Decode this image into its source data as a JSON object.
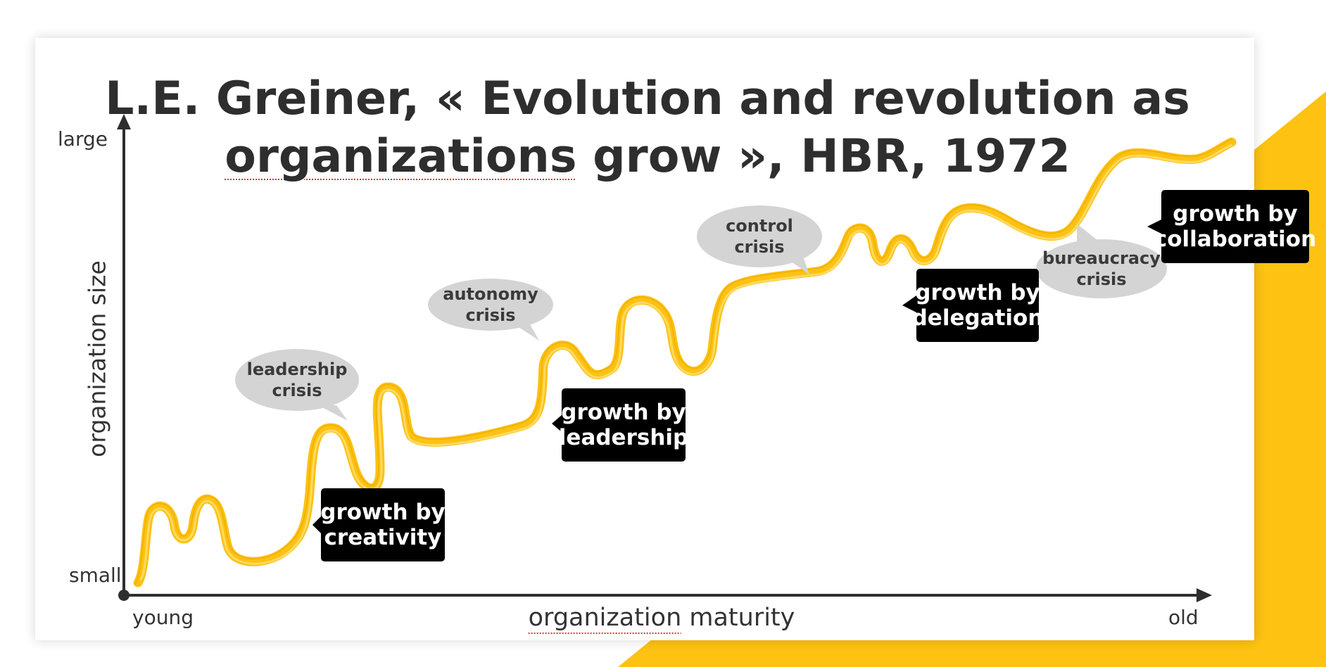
{
  "title": {
    "prefix": "L.E. Greiner, « Evolution and revolution as",
    "underlined_word": "organizations",
    "suffix": " grow », HBR, 1972"
  },
  "y_axis": {
    "title": "organization size",
    "top_label": "large",
    "bottom_label": "small"
  },
  "x_axis": {
    "title_word": "organization",
    "title_rest": " maturity",
    "left_label": "young",
    "right_label": "old"
  },
  "crises": [
    {
      "line1": "leadership",
      "line2": "crisis"
    },
    {
      "line1": "autonomy",
      "line2": "crisis"
    },
    {
      "line1": "control",
      "line2": "crisis"
    },
    {
      "line1": "bureaucracy",
      "line2": "crisis"
    }
  ],
  "growth_phases": [
    {
      "line1": "growth by",
      "line2": "creativity"
    },
    {
      "line1": "growth by",
      "line2": "leadership"
    },
    {
      "line1": "growth by",
      "line2": "delegation"
    },
    {
      "line1": "growth by",
      "line2": "collaboration"
    }
  ],
  "colors": {
    "curve": "#FDC212",
    "accent": "#FDC212",
    "axis": "#2e2e2e",
    "bubble": "#d4d4d4",
    "label_bg": "#000000",
    "label_text": "#ffffff"
  }
}
